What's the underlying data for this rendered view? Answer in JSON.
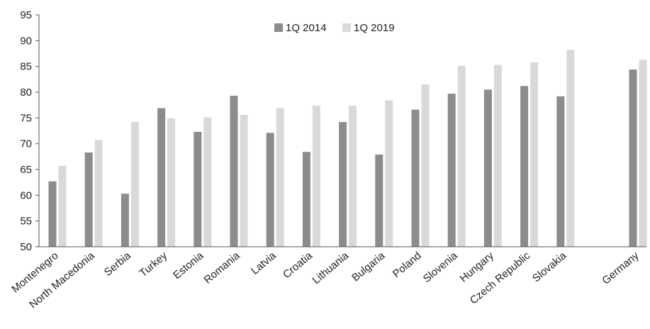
{
  "chart_data": {
    "type": "bar",
    "categories": [
      "Montenegro",
      "North Macedonia",
      "Serbia",
      "Turkey",
      "Estonia",
      "Romania",
      "Latvia",
      "Croatia",
      "Lithuania",
      "Bulgaria",
      "Poland",
      "Slovenia",
      "Hungary",
      "Czech Republic",
      "Slovakia",
      "Germany"
    ],
    "series": [
      {
        "name": "1Q 2014",
        "color": "#8c8c8c",
        "values": [
          62.7,
          68.3,
          60.3,
          76.9,
          72.3,
          79.3,
          72.1,
          68.4,
          74.2,
          67.9,
          76.6,
          79.7,
          80.5,
          81.2,
          79.2,
          84.4
        ]
      },
      {
        "name": "1Q 2019",
        "color": "#d9d9d9",
        "values": [
          65.7,
          70.7,
          74.2,
          74.9,
          75.1,
          75.6,
          76.9,
          77.4,
          77.4,
          78.4,
          81.5,
          85.1,
          85.3,
          85.8,
          88.2,
          86.3
        ]
      }
    ],
    "ylim": [
      50,
      95
    ],
    "yticks": [
      50,
      55,
      60,
      65,
      70,
      75,
      80,
      85,
      90,
      95
    ],
    "legend_position": "top-center",
    "grid": false,
    "gap_before_last_category": true
  }
}
